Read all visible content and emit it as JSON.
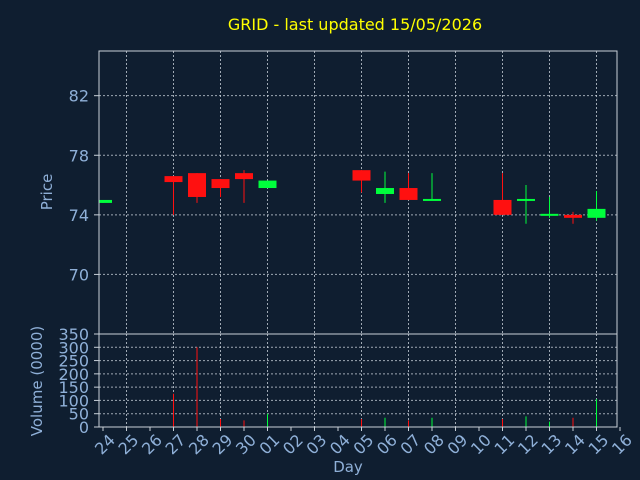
{
  "chart_data": [
    {
      "type": "candlestick",
      "title": "GRID - last updated 15/05/2026",
      "ylabel": "Price",
      "ylim": [
        66,
        85
      ],
      "yticks": [
        70,
        74,
        78,
        82
      ],
      "grid": true,
      "up_color": "#00ff3c",
      "down_color": "#ff1010",
      "candles": [
        {
          "day": "24",
          "open": 74.8,
          "close": 75.0,
          "high": 75.0,
          "low": 74.8
        },
        {
          "day": "27",
          "open": 76.6,
          "close": 76.2,
          "high": 76.6,
          "low": 74.0
        },
        {
          "day": "28",
          "open": 76.8,
          "close": 75.2,
          "high": 76.8,
          "low": 74.8
        },
        {
          "day": "29",
          "open": 76.4,
          "close": 75.8,
          "high": 76.4,
          "low": 75.2
        },
        {
          "day": "30",
          "open": 76.8,
          "close": 76.4,
          "high": 77.0,
          "low": 74.8
        },
        {
          "day": "01",
          "open": 75.8,
          "close": 76.3,
          "high": 76.3,
          "low": 75.8
        },
        {
          "day": "05",
          "open": 77.0,
          "close": 76.3,
          "high": 77.0,
          "low": 75.5
        },
        {
          "day": "06",
          "open": 75.4,
          "close": 75.8,
          "high": 76.9,
          "low": 74.8
        },
        {
          "day": "07",
          "open": 75.8,
          "close": 75.0,
          "high": 76.8,
          "low": 75.0
        },
        {
          "day": "08",
          "open": 75.0,
          "close": 75.0,
          "high": 76.8,
          "low": 75.0
        },
        {
          "day": "11",
          "open": 75.0,
          "close": 74.0,
          "high": 76.8,
          "low": 74.0
        },
        {
          "day": "12",
          "open": 75.0,
          "close": 75.0,
          "high": 76.0,
          "low": 73.4
        },
        {
          "day": "13",
          "open": 74.0,
          "close": 74.0,
          "high": 75.2,
          "low": 73.8
        },
        {
          "day": "14",
          "open": 74.0,
          "close": 73.8,
          "high": 74.2,
          "low": 73.4
        },
        {
          "day": "15",
          "open": 73.8,
          "close": 74.4,
          "high": 75.6,
          "low": 73.6
        }
      ]
    },
    {
      "type": "bar",
      "ylabel": "Volume (0000)",
      "xlabel": "Day",
      "ylim": [
        0,
        350
      ],
      "yticks": [
        0,
        50,
        100,
        150,
        200,
        250,
        300,
        350
      ],
      "grid": true,
      "categories": [
        "24",
        "25",
        "26",
        "27",
        "28",
        "29",
        "30",
        "01",
        "02",
        "03",
        "04",
        "05",
        "06",
        "07",
        "08",
        "09",
        "10",
        "11",
        "12",
        "13",
        "14",
        "15",
        "16"
      ],
      "volumes": [
        {
          "day": "27",
          "value": 125,
          "direction": "down"
        },
        {
          "day": "28",
          "value": 300,
          "direction": "down"
        },
        {
          "day": "29",
          "value": 30,
          "direction": "down"
        },
        {
          "day": "30",
          "value": 25,
          "direction": "down"
        },
        {
          "day": "01",
          "value": 50,
          "direction": "up"
        },
        {
          "day": "05",
          "value": 30,
          "direction": "down"
        },
        {
          "day": "06",
          "value": 35,
          "direction": "up"
        },
        {
          "day": "07",
          "value": 25,
          "direction": "down"
        },
        {
          "day": "08",
          "value": 35,
          "direction": "up"
        },
        {
          "day": "11",
          "value": 30,
          "direction": "down"
        },
        {
          "day": "12",
          "value": 40,
          "direction": "up"
        },
        {
          "day": "13",
          "value": 20,
          "direction": "up"
        },
        {
          "day": "14",
          "value": 35,
          "direction": "down"
        },
        {
          "day": "15",
          "value": 105,
          "direction": "up"
        }
      ]
    }
  ]
}
